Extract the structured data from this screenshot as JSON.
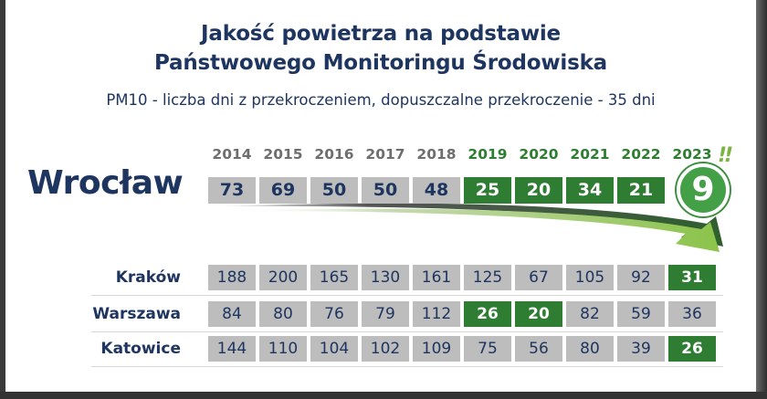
{
  "chart_data": {
    "type": "table",
    "title": "Jakość powietrza na podstawie",
    "title_line2": "Państwowego Monitoringu Środowiska",
    "subtitle": "PM10 - liczba dni z przekroczeniem, dopuszczalne przekroczenie - 35 dni",
    "years": [
      "2014",
      "2015",
      "2016",
      "2017",
      "2018",
      "2019",
      "2020",
      "2021",
      "2022",
      "2023"
    ],
    "highlight": {
      "city": "Wrocław",
      "values": [
        "73",
        "69",
        "50",
        "50",
        "48",
        "25",
        "20",
        "34",
        "21",
        "9"
      ],
      "exclaim": "!!"
    },
    "cities": [
      {
        "name": "Kraków",
        "values": [
          "188",
          "200",
          "165",
          "130",
          "161",
          "125",
          "67",
          "105",
          "92",
          "31"
        ]
      },
      {
        "name": "Warszawa",
        "values": [
          "84",
          "80",
          "76",
          "79",
          "112",
          "26",
          "20",
          "82",
          "59",
          "36"
        ]
      },
      {
        "name": "Katowice",
        "values": [
          "144",
          "110",
          "104",
          "102",
          "109",
          "75",
          "56",
          "80",
          "39",
          "26"
        ]
      }
    ],
    "limit_days": 35,
    "colors": {
      "navy": "#1e3560",
      "green": "#2e7d32",
      "light_green": "#7cb342",
      "gray": "#bdbdbd"
    }
  }
}
